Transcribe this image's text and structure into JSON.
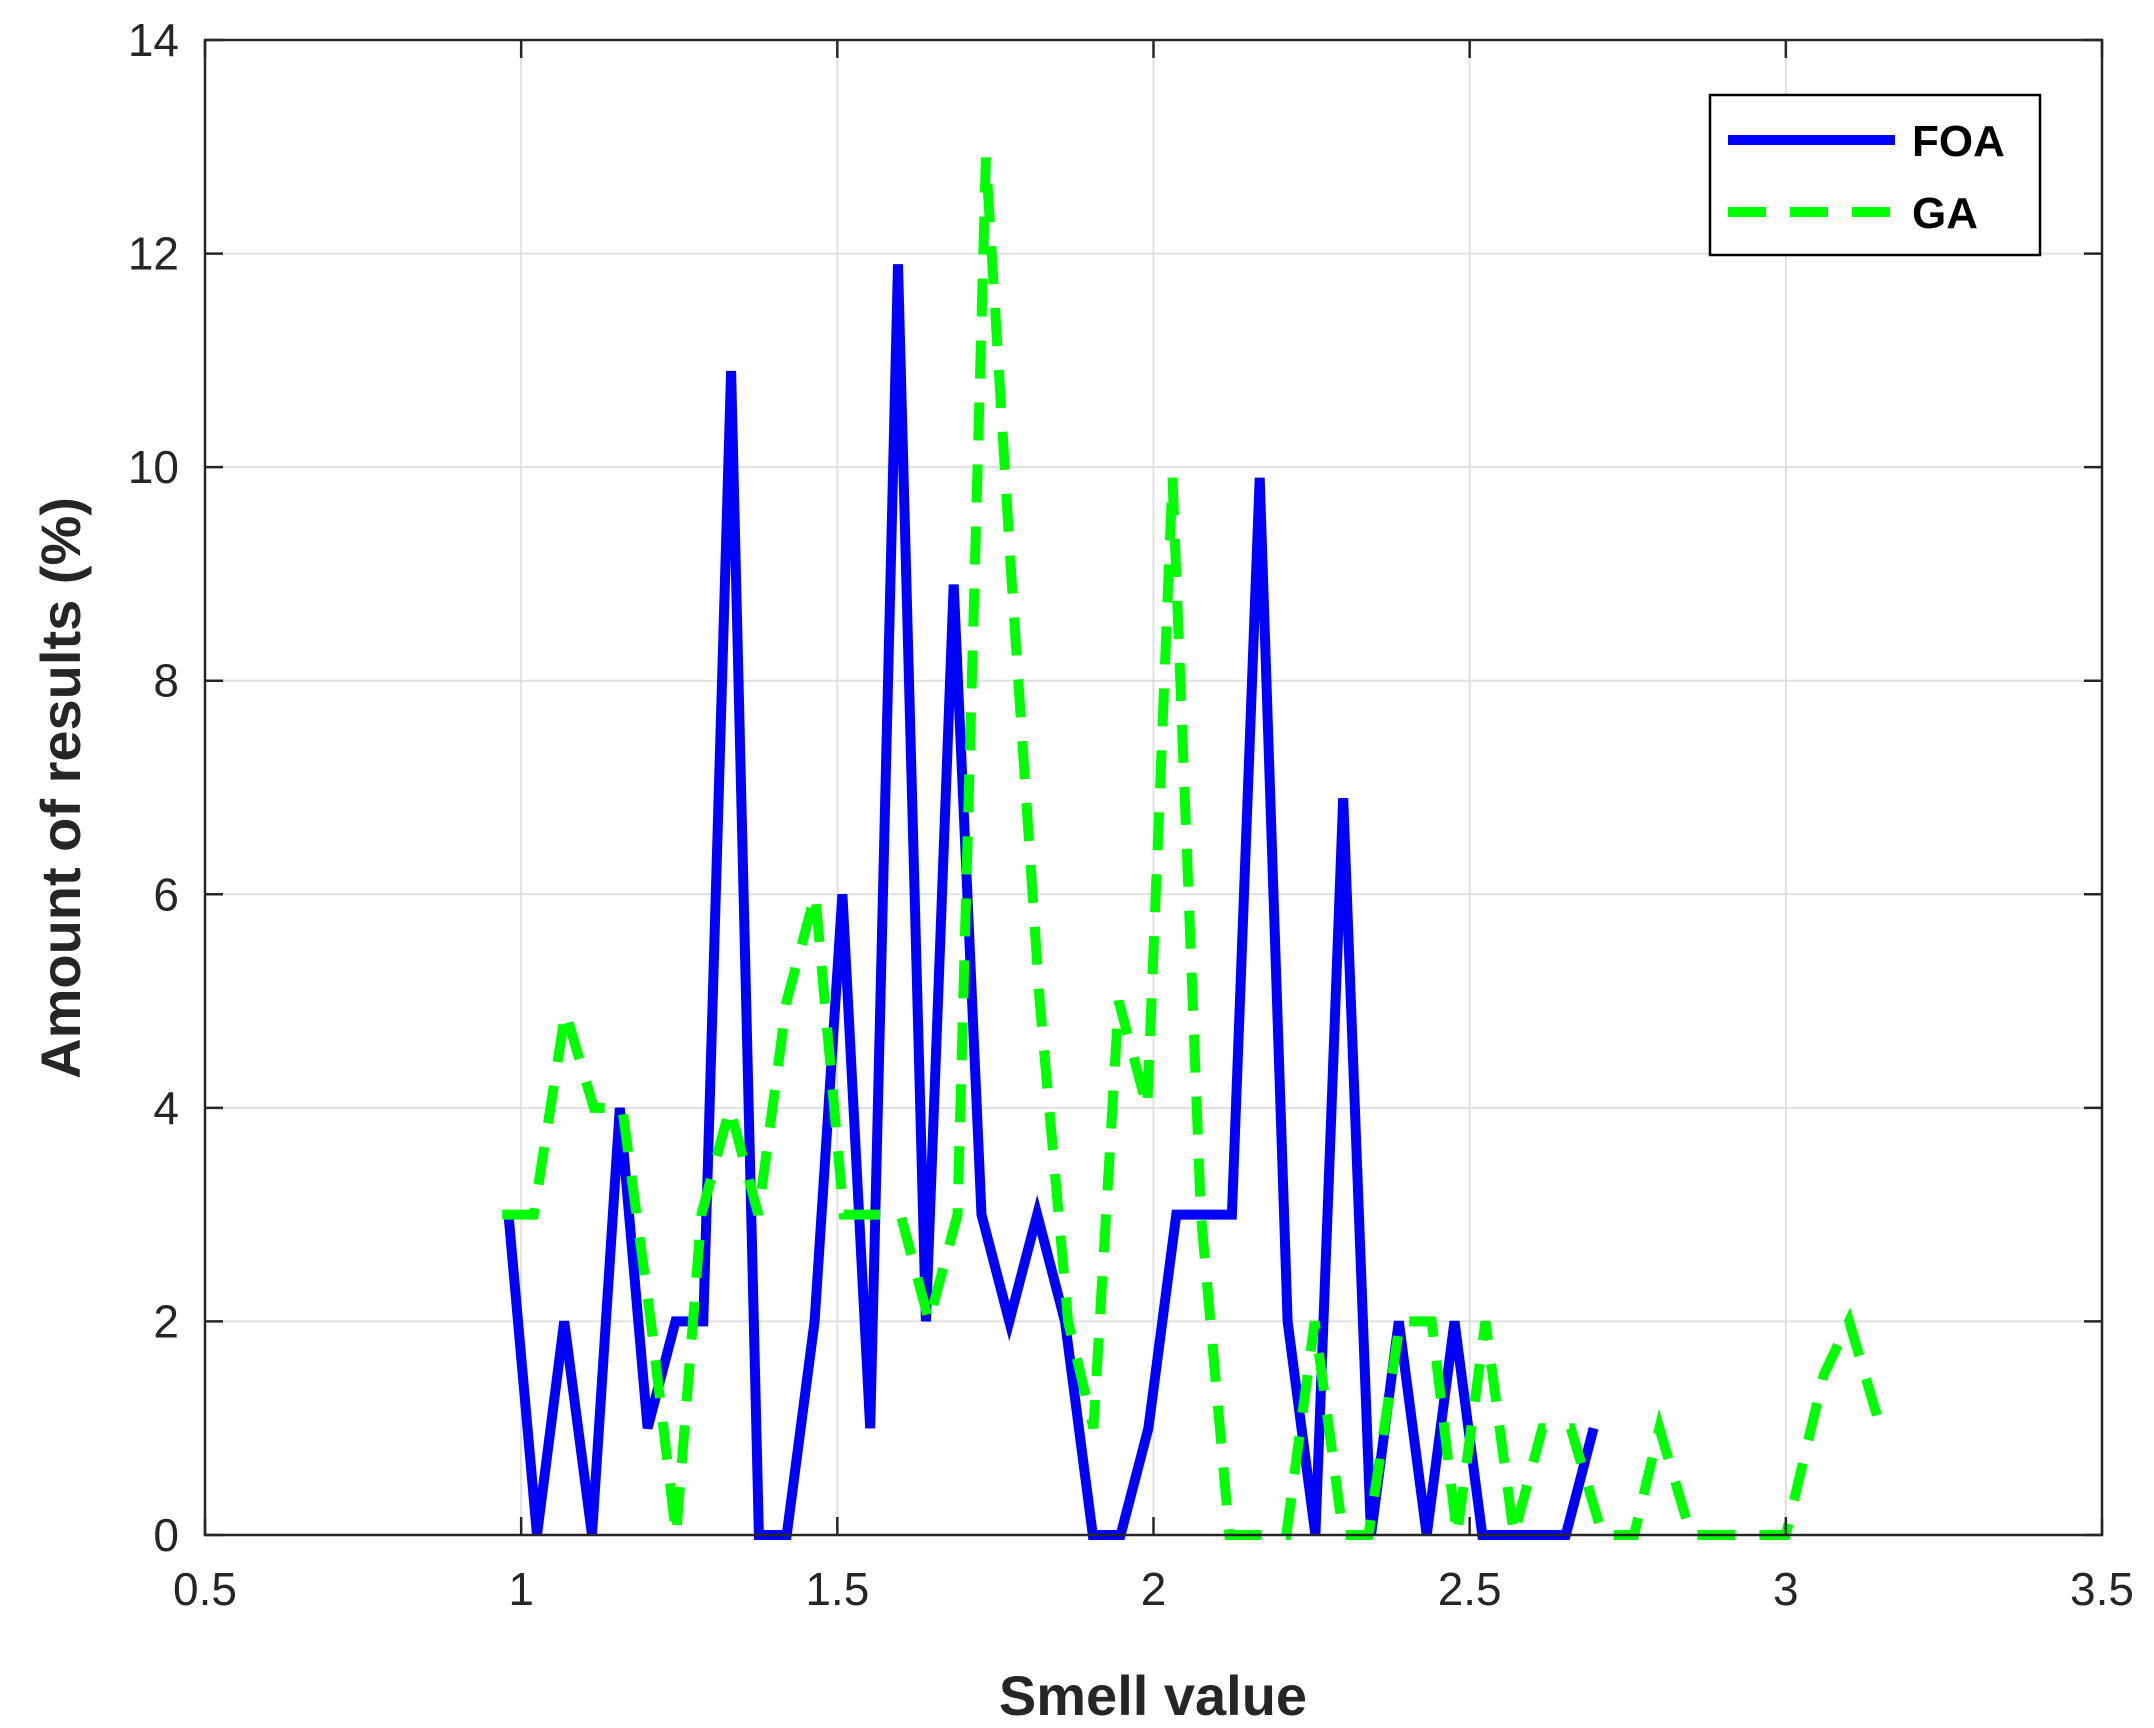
{
  "chart_data": {
    "type": "line",
    "title": "",
    "xlabel": "Smell value",
    "ylabel": "Amount of results (%)",
    "xlim": [
      0.5,
      3.5
    ],
    "ylim": [
      0,
      14
    ],
    "xticks": [
      0.5,
      1,
      1.5,
      2,
      2.5,
      3,
      3.5
    ],
    "xtick_labels": [
      "0.5",
      "1",
      "1.5",
      "2",
      "2.5",
      "3",
      "3.5"
    ],
    "yticks": [
      0,
      2,
      4,
      6,
      8,
      10,
      12,
      14
    ],
    "ytick_labels": [
      "0",
      "2",
      "4",
      "6",
      "8",
      "10",
      "12",
      "14"
    ],
    "grid": true,
    "legend_position": "top-right",
    "series": [
      {
        "name": "FOA",
        "color": "#0000ff",
        "style": "solid",
        "x": [
          0.98,
          1.025,
          1.068,
          1.112,
          1.156,
          1.2,
          1.244,
          1.288,
          1.332,
          1.376,
          1.42,
          1.464,
          1.508,
          1.552,
          1.596,
          1.64,
          1.684,
          1.728,
          1.772,
          1.816,
          1.86,
          1.904,
          1.948,
          1.992,
          2.036,
          2.08,
          2.124,
          2.168,
          2.212,
          2.256,
          2.3,
          2.344,
          2.388,
          2.432,
          2.476,
          2.52,
          2.564,
          2.608,
          2.652,
          2.696
        ],
        "y": [
          3,
          0,
          2,
          0,
          4,
          1,
          2,
          2,
          10.9,
          0,
          0,
          2,
          6,
          1,
          11.9,
          2,
          8.9,
          3,
          2,
          3,
          2,
          0,
          0,
          1,
          3,
          3,
          3,
          9.9,
          2,
          0,
          6.9,
          0,
          2,
          0,
          2,
          0,
          0,
          0,
          0,
          1
        ]
      },
      {
        "name": "GA",
        "color": "#00ff00",
        "style": "dashed",
        "x": [
          0.97,
          1.02,
          1.07,
          1.115,
          1.16,
          1.205,
          1.245,
          1.285,
          1.33,
          1.375,
          1.42,
          1.465,
          1.51,
          1.555,
          1.6,
          1.645,
          1.69,
          1.735,
          1.775,
          1.82,
          1.865,
          1.905,
          1.945,
          1.99,
          2.03,
          2.075,
          2.12,
          2.165,
          2.21,
          2.255,
          2.3,
          2.34,
          2.39,
          2.44,
          2.48,
          2.525,
          2.57,
          2.615,
          2.66,
          2.71,
          2.76,
          2.8,
          2.85,
          2.9,
          2.95,
          3.0,
          3.06,
          3.1,
          3.15
        ],
        "y": [
          3,
          3,
          4.9,
          4,
          4,
          2,
          0,
          3,
          4,
          3,
          5,
          6,
          3,
          3,
          3,
          2,
          3,
          12.9,
          9,
          5,
          2,
          1,
          5,
          4,
          9.9,
          3,
          0,
          0,
          0,
          2,
          0,
          0,
          2,
          2,
          0,
          2,
          0,
          1,
          1,
          0,
          0,
          1,
          0,
          0,
          0,
          0,
          1.5,
          2,
          1
        ]
      }
    ]
  }
}
